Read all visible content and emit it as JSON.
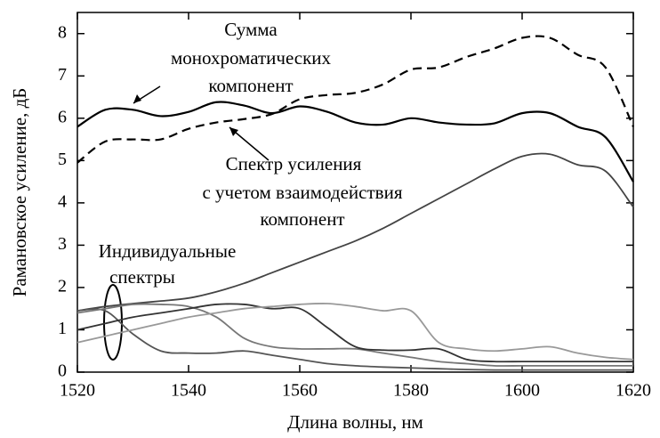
{
  "chart_data": {
    "type": "line",
    "xlabel": "Длина волны, нм",
    "ylabel": "Рамановское усиление, дБ",
    "xlim": [
      1520,
      1620
    ],
    "ylim": [
      0,
      8.5
    ],
    "xticks": [
      1520,
      1540,
      1560,
      1580,
      1600,
      1620
    ],
    "yticks": [
      0,
      1,
      2,
      3,
      4,
      5,
      6,
      7,
      8
    ],
    "grid": false,
    "annotations": [
      [
        "Сумма",
        "монохроматических",
        "компонент"
      ],
      [
        "Спектр усиления",
        "с учетом взаимодействия",
        "компонент"
      ],
      [
        "Индивидуальные",
        "спектры"
      ]
    ],
    "x": [
      1520,
      1525,
      1530,
      1535,
      1540,
      1545,
      1550,
      1555,
      1560,
      1565,
      1570,
      1575,
      1580,
      1585,
      1590,
      1595,
      1600,
      1605,
      1610,
      1615,
      1620
    ],
    "series": [
      {
        "color": "#000000",
        "dashed": false,
        "values": [
          5.8,
          6.2,
          6.2,
          6.05,
          6.15,
          6.38,
          6.3,
          6.12,
          6.28,
          6.15,
          5.9,
          5.85,
          6.0,
          5.9,
          5.85,
          5.88,
          6.12,
          6.12,
          5.8,
          5.55,
          4.5
        ]
      },
      {
        "color": "#000000",
        "dashed": true,
        "values": [
          4.95,
          5.45,
          5.5,
          5.5,
          5.75,
          5.9,
          5.98,
          6.1,
          6.45,
          6.55,
          6.6,
          6.8,
          7.15,
          7.2,
          7.45,
          7.65,
          7.9,
          7.9,
          7.5,
          7.2,
          5.8
        ]
      },
      {
        "color": "#444444",
        "dashed": false,
        "values": [
          1.45,
          1.55,
          1.62,
          1.68,
          1.75,
          1.9,
          2.1,
          2.35,
          2.6,
          2.85,
          3.1,
          3.4,
          3.75,
          4.1,
          4.45,
          4.8,
          5.1,
          5.15,
          4.9,
          4.75,
          3.9
        ]
      },
      {
        "color": "#555555",
        "dashed": false,
        "values": [
          1.45,
          1.45,
          0.9,
          0.5,
          0.45,
          0.45,
          0.5,
          0.4,
          0.3,
          0.2,
          0.15,
          0.12,
          0.1,
          0.08,
          0.06,
          0.05,
          0.05,
          0.05,
          0.05,
          0.05,
          0.05
        ]
      },
      {
        "color": "#777777",
        "dashed": false,
        "values": [
          1.4,
          1.5,
          1.6,
          1.6,
          1.55,
          1.3,
          0.8,
          0.6,
          0.55,
          0.55,
          0.55,
          0.45,
          0.35,
          0.25,
          0.2,
          0.15,
          0.15,
          0.15,
          0.15,
          0.15,
          0.15
        ]
      },
      {
        "color": "#333333",
        "dashed": false,
        "values": [
          1.0,
          1.15,
          1.3,
          1.4,
          1.5,
          1.6,
          1.6,
          1.5,
          1.5,
          1.05,
          0.6,
          0.52,
          0.52,
          0.55,
          0.3,
          0.25,
          0.25,
          0.25,
          0.25,
          0.25,
          0.25
        ]
      },
      {
        "color": "#999999",
        "dashed": false,
        "values": [
          0.7,
          0.85,
          1.0,
          1.15,
          1.3,
          1.4,
          1.5,
          1.55,
          1.6,
          1.62,
          1.55,
          1.45,
          1.45,
          0.7,
          0.55,
          0.5,
          0.55,
          0.6,
          0.45,
          0.35,
          0.3
        ]
      }
    ]
  }
}
